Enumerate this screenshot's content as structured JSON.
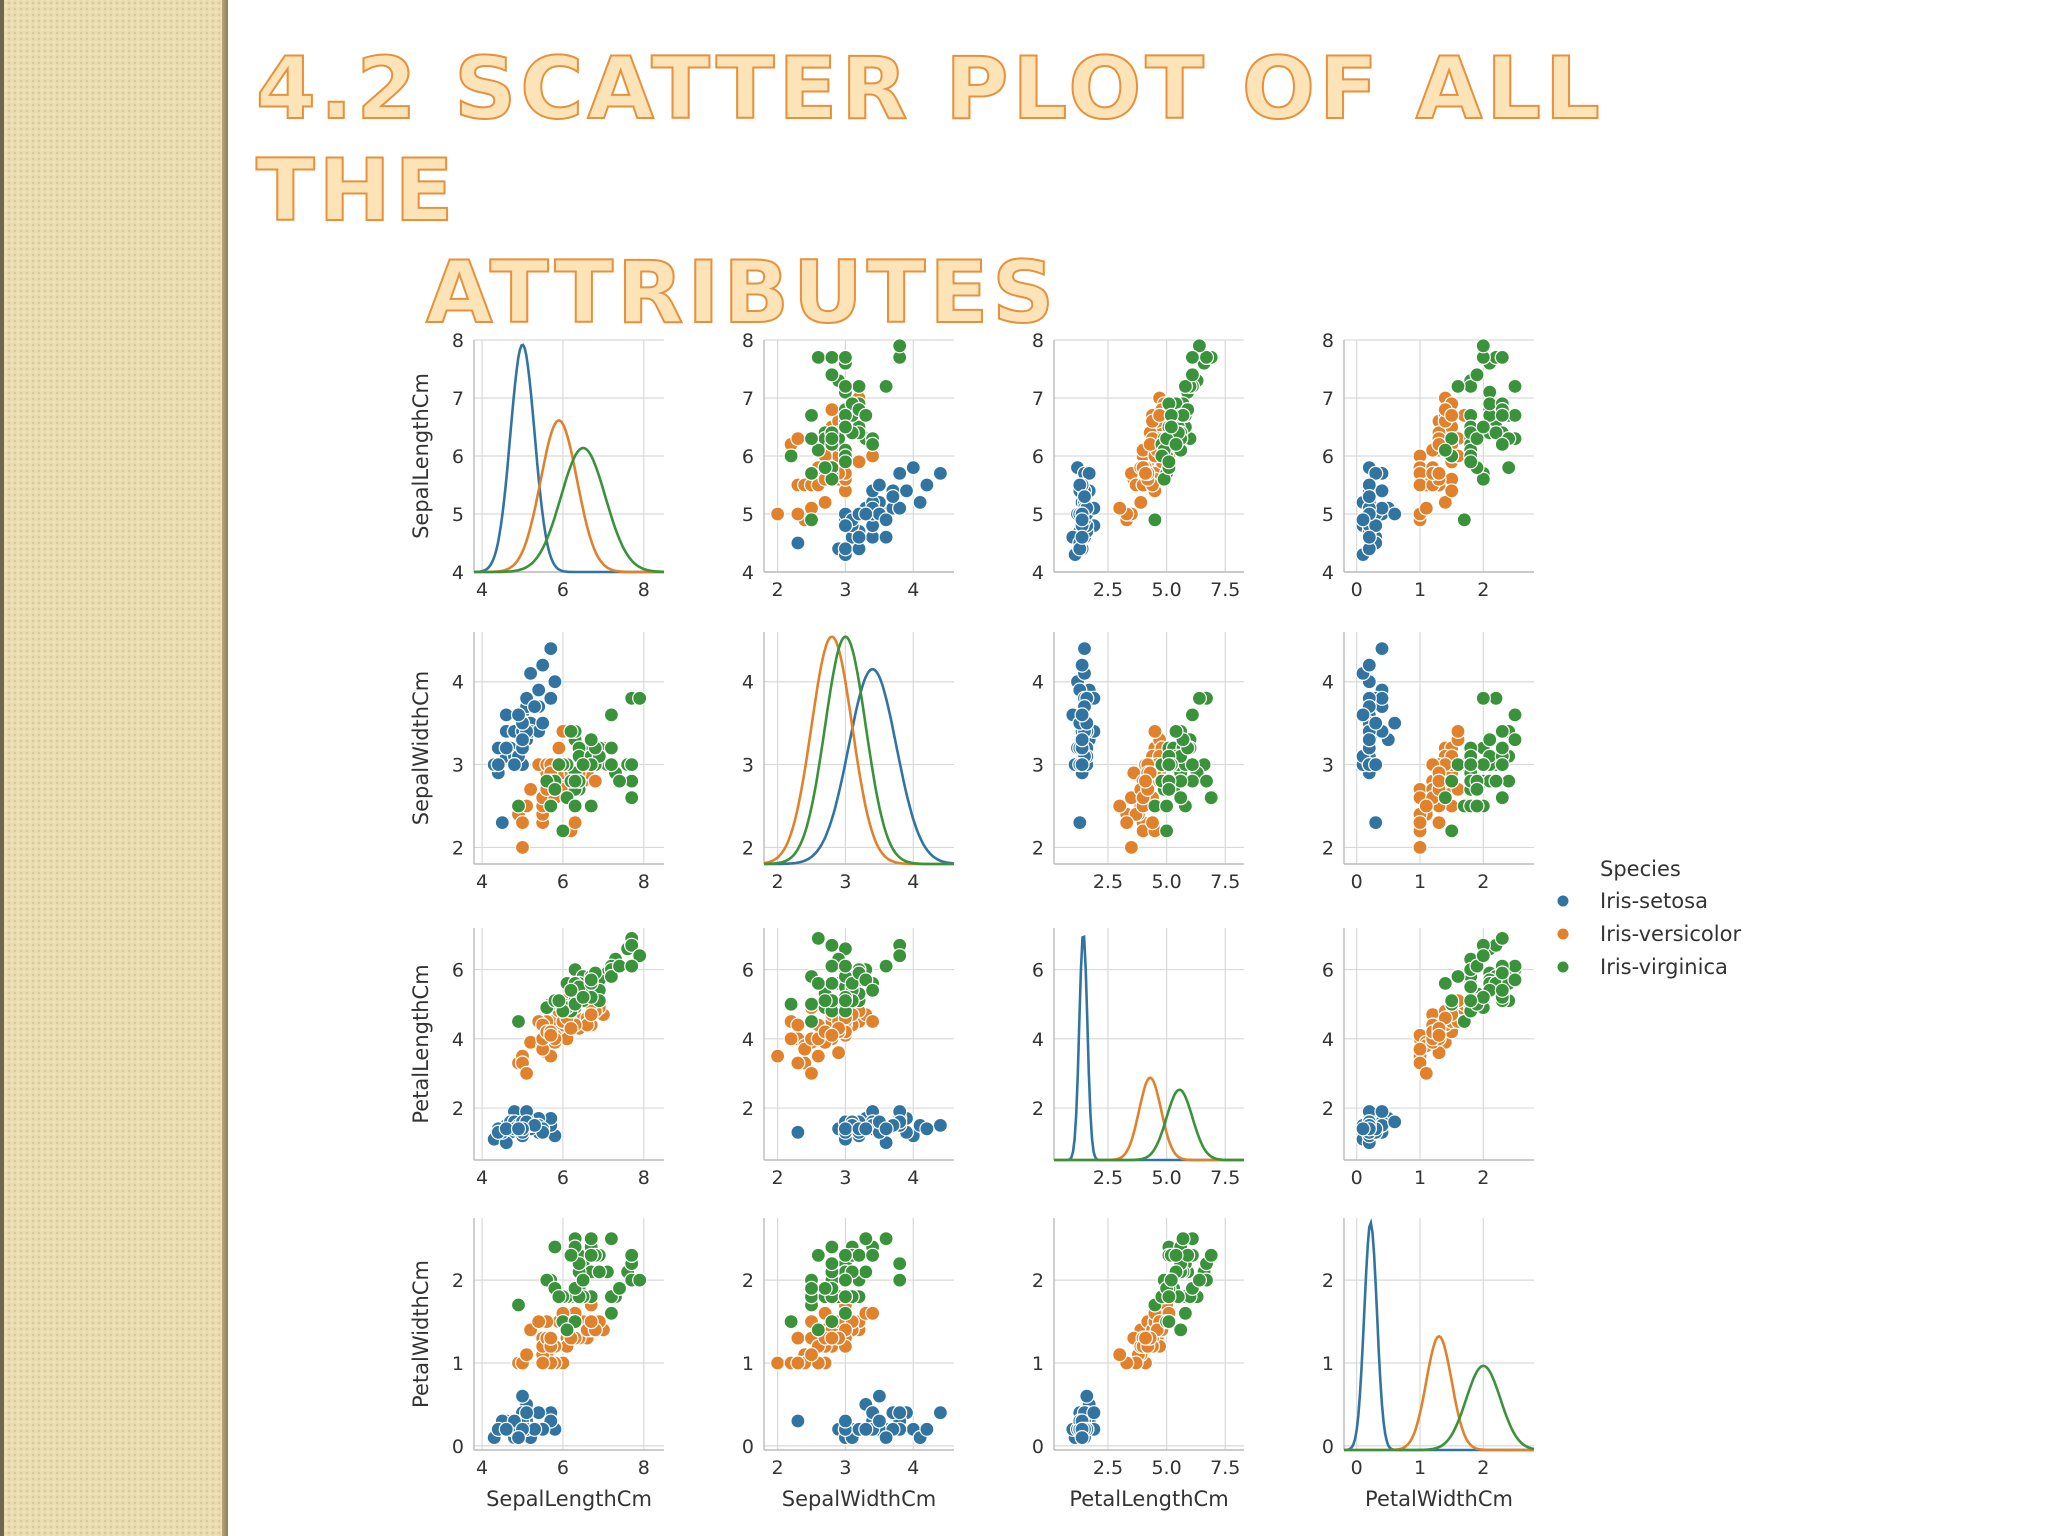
{
  "slide": {
    "title_line_1": "4.2 SCATTER PLOT OF ALL THE",
    "title_line_2": "ATTRIBUTES"
  },
  "colors": {
    "Iris-setosa": "#3274a1",
    "Iris-versicolor": "#e1812c",
    "Iris-virginica": "#3a923a",
    "grid": "#d9d9d9",
    "title_fill": "#fde3b8",
    "title_stroke": "#e8913a",
    "side_bar": "#e9dcb1"
  },
  "chart_data": {
    "type": "scatter",
    "variables": [
      "SepalLengthCm",
      "SepalWidthCm",
      "PetalLengthCm",
      "PetalWidthCm"
    ],
    "axis_labels": [
      "SepalLengthCm",
      "SepalWidthCm",
      "PetalLengthCm",
      "PetalWidthCm"
    ],
    "ranges": [
      [
        3.8,
        8.5
      ],
      [
        1.8,
        4.6
      ],
      [
        0.2,
        8.3
      ],
      [
        -0.2,
        2.8
      ]
    ],
    "ticks": [
      [
        4,
        6,
        8
      ],
      [
        2,
        3,
        4
      ],
      [
        2.5,
        5.0,
        7.5
      ],
      [
        0,
        1,
        2
      ]
    ],
    "tick_labels": [
      [
        "4",
        "6",
        "8"
      ],
      [
        "2",
        "3",
        "4"
      ],
      [
        "2.5",
        "5.0",
        "7.5"
      ],
      [
        "0",
        "1",
        "2"
      ]
    ],
    "row_ranges": [
      [
        4,
        8
      ],
      [
        1.8,
        4.6
      ],
      [
        0.5,
        7.2
      ],
      [
        -0.05,
        2.75
      ]
    ],
    "row_ticks": [
      [
        4,
        5,
        6,
        7,
        8
      ],
      [
        2,
        3,
        4
      ],
      [
        2,
        4,
        6
      ],
      [
        0,
        1,
        2
      ]
    ],
    "row_tick_labels": [
      [
        "4",
        "5",
        "6",
        "7",
        "8"
      ],
      [
        "2",
        "3",
        "4"
      ],
      [
        "2",
        "4",
        "6"
      ],
      [
        "0",
        "1",
        "2"
      ]
    ],
    "grid": true,
    "legend": {
      "title": "Species",
      "position": "right",
      "entries": [
        "Iris-setosa",
        "Iris-versicolor",
        "Iris-virginica"
      ]
    },
    "diagonal": "kde",
    "kde_peaks": {
      "SepalLengthCm": {
        "Iris-setosa": [
          5.0,
          0.3
        ],
        "Iris-versicolor": [
          5.9,
          0.45
        ],
        "Iris-virginica": [
          6.5,
          0.55
        ]
      },
      "SepalWidthCm": {
        "Iris-setosa": [
          3.4,
          0.35
        ],
        "Iris-versicolor": [
          2.8,
          0.3
        ],
        "Iris-virginica": [
          3.0,
          0.3
        ]
      },
      "PetalLengthCm": {
        "Iris-setosa": [
          1.45,
          0.17
        ],
        "Iris-versicolor": [
          4.3,
          0.47
        ],
        "Iris-virginica": [
          5.55,
          0.55
        ]
      },
      "PetalWidthCm": {
        "Iris-setosa": [
          0.22,
          0.1
        ],
        "Iris-versicolor": [
          1.3,
          0.2
        ],
        "Iris-virginica": [
          2.0,
          0.27
        ]
      }
    },
    "species_samples": {
      "Iris-setosa": [
        [
          5.1,
          3.5,
          1.4,
          0.2
        ],
        [
          4.9,
          3.0,
          1.4,
          0.2
        ],
        [
          4.7,
          3.2,
          1.3,
          0.2
        ],
        [
          4.6,
          3.1,
          1.5,
          0.2
        ],
        [
          5.0,
          3.6,
          1.4,
          0.2
        ],
        [
          5.4,
          3.9,
          1.7,
          0.4
        ],
        [
          4.6,
          3.4,
          1.4,
          0.3
        ],
        [
          5.0,
          3.4,
          1.5,
          0.2
        ],
        [
          4.4,
          2.9,
          1.4,
          0.2
        ],
        [
          4.9,
          3.1,
          1.5,
          0.1
        ],
        [
          5.4,
          3.7,
          1.5,
          0.2
        ],
        [
          4.8,
          3.4,
          1.6,
          0.2
        ],
        [
          4.8,
          3.0,
          1.4,
          0.1
        ],
        [
          4.3,
          3.0,
          1.1,
          0.1
        ],
        [
          5.8,
          4.0,
          1.2,
          0.2
        ],
        [
          5.7,
          4.4,
          1.5,
          0.4
        ],
        [
          5.4,
          3.9,
          1.3,
          0.4
        ],
        [
          5.1,
          3.5,
          1.4,
          0.3
        ],
        [
          5.7,
          3.8,
          1.7,
          0.3
        ],
        [
          5.1,
          3.8,
          1.5,
          0.3
        ],
        [
          5.4,
          3.4,
          1.7,
          0.2
        ],
        [
          5.1,
          3.7,
          1.5,
          0.4
        ],
        [
          4.6,
          3.6,
          1.0,
          0.2
        ],
        [
          5.1,
          3.3,
          1.7,
          0.5
        ],
        [
          4.8,
          3.4,
          1.9,
          0.2
        ],
        [
          5.0,
          3.0,
          1.6,
          0.2
        ],
        [
          5.0,
          3.4,
          1.6,
          0.4
        ],
        [
          5.2,
          3.5,
          1.5,
          0.2
        ],
        [
          5.2,
          3.4,
          1.4,
          0.2
        ],
        [
          4.7,
          3.2,
          1.6,
          0.2
        ],
        [
          4.8,
          3.1,
          1.6,
          0.2
        ],
        [
          5.4,
          3.4,
          1.5,
          0.4
        ],
        [
          5.2,
          4.1,
          1.5,
          0.1
        ],
        [
          5.5,
          4.2,
          1.4,
          0.2
        ],
        [
          4.9,
          3.1,
          1.5,
          0.1
        ],
        [
          5.0,
          3.2,
          1.2,
          0.2
        ],
        [
          5.5,
          3.5,
          1.3,
          0.2
        ],
        [
          4.4,
          3.0,
          1.3,
          0.2
        ],
        [
          5.1,
          3.4,
          1.5,
          0.2
        ],
        [
          5.0,
          3.5,
          1.3,
          0.3
        ],
        [
          4.5,
          2.3,
          1.3,
          0.3
        ],
        [
          4.4,
          3.2,
          1.3,
          0.2
        ],
        [
          5.0,
          3.5,
          1.6,
          0.6
        ],
        [
          5.1,
          3.8,
          1.9,
          0.4
        ],
        [
          4.8,
          3.0,
          1.4,
          0.3
        ],
        [
          5.1,
          3.8,
          1.6,
          0.2
        ],
        [
          4.6,
          3.2,
          1.4,
          0.2
        ],
        [
          5.3,
          3.7,
          1.5,
          0.2
        ],
        [
          5.0,
          3.3,
          1.4,
          0.2
        ],
        [
          4.9,
          3.6,
          1.4,
          0.1
        ]
      ],
      "Iris-versicolor": [
        [
          7.0,
          3.2,
          4.7,
          1.4
        ],
        [
          6.4,
          3.2,
          4.5,
          1.5
        ],
        [
          6.9,
          3.1,
          4.9,
          1.5
        ],
        [
          5.5,
          2.3,
          4.0,
          1.3
        ],
        [
          6.5,
          2.8,
          4.6,
          1.5
        ],
        [
          5.7,
          2.8,
          4.5,
          1.3
        ],
        [
          6.3,
          3.3,
          4.7,
          1.6
        ],
        [
          4.9,
          2.4,
          3.3,
          1.0
        ],
        [
          6.6,
          2.9,
          4.6,
          1.3
        ],
        [
          5.2,
          2.7,
          3.9,
          1.4
        ],
        [
          5.0,
          2.0,
          3.5,
          1.0
        ],
        [
          5.9,
          3.0,
          4.2,
          1.5
        ],
        [
          6.0,
          2.2,
          4.0,
          1.0
        ],
        [
          6.1,
          2.9,
          4.7,
          1.4
        ],
        [
          5.6,
          2.9,
          3.6,
          1.3
        ],
        [
          6.7,
          3.1,
          4.4,
          1.4
        ],
        [
          5.6,
          3.0,
          4.5,
          1.5
        ],
        [
          5.8,
          2.7,
          4.1,
          1.0
        ],
        [
          6.2,
          2.2,
          4.5,
          1.5
        ],
        [
          5.6,
          2.5,
          3.9,
          1.1
        ],
        [
          5.9,
          3.2,
          4.8,
          1.8
        ],
        [
          6.1,
          2.8,
          4.0,
          1.3
        ],
        [
          6.3,
          2.5,
          4.9,
          1.5
        ],
        [
          6.1,
          2.8,
          4.7,
          1.2
        ],
        [
          6.4,
          2.9,
          4.3,
          1.3
        ],
        [
          6.6,
          3.0,
          4.4,
          1.4
        ],
        [
          6.8,
          2.8,
          4.8,
          1.4
        ],
        [
          6.7,
          3.0,
          5.0,
          1.7
        ],
        [
          6.0,
          2.9,
          4.5,
          1.5
        ],
        [
          5.7,
          2.6,
          3.5,
          1.0
        ],
        [
          5.5,
          2.4,
          3.8,
          1.1
        ],
        [
          5.5,
          2.4,
          3.7,
          1.0
        ],
        [
          5.8,
          2.7,
          3.9,
          1.2
        ],
        [
          6.0,
          2.7,
          5.1,
          1.6
        ],
        [
          5.4,
          3.0,
          4.5,
          1.5
        ],
        [
          6.0,
          3.4,
          4.5,
          1.6
        ],
        [
          6.7,
          3.1,
          4.7,
          1.5
        ],
        [
          6.3,
          2.3,
          4.4,
          1.3
        ],
        [
          5.6,
          3.0,
          4.1,
          1.3
        ],
        [
          5.5,
          2.5,
          4.0,
          1.3
        ],
        [
          5.5,
          2.6,
          4.4,
          1.2
        ],
        [
          6.1,
          3.0,
          4.6,
          1.4
        ],
        [
          5.8,
          2.6,
          4.0,
          1.2
        ],
        [
          5.0,
          2.3,
          3.3,
          1.0
        ],
        [
          5.6,
          2.7,
          4.2,
          1.3
        ],
        [
          5.7,
          3.0,
          4.2,
          1.2
        ],
        [
          5.7,
          2.9,
          4.2,
          1.3
        ],
        [
          6.2,
          2.9,
          4.3,
          1.3
        ],
        [
          5.1,
          2.5,
          3.0,
          1.1
        ],
        [
          5.7,
          2.8,
          4.1,
          1.3
        ]
      ],
      "Iris-virginica": [
        [
          6.3,
          3.3,
          6.0,
          2.5
        ],
        [
          5.8,
          2.7,
          5.1,
          1.9
        ],
        [
          7.1,
          3.0,
          5.9,
          2.1
        ],
        [
          6.3,
          2.9,
          5.6,
          1.8
        ],
        [
          6.5,
          3.0,
          5.8,
          2.2
        ],
        [
          7.6,
          3.0,
          6.6,
          2.1
        ],
        [
          4.9,
          2.5,
          4.5,
          1.7
        ],
        [
          7.3,
          2.9,
          6.3,
          1.8
        ],
        [
          6.7,
          2.5,
          5.8,
          1.8
        ],
        [
          7.2,
          3.6,
          6.1,
          2.5
        ],
        [
          6.5,
          3.2,
          5.1,
          2.0
        ],
        [
          6.4,
          2.7,
          5.3,
          1.9
        ],
        [
          6.8,
          3.0,
          5.5,
          2.1
        ],
        [
          5.7,
          2.5,
          5.0,
          2.0
        ],
        [
          5.8,
          2.8,
          5.1,
          2.4
        ],
        [
          6.4,
          3.2,
          5.3,
          2.3
        ],
        [
          6.5,
          3.0,
          5.5,
          1.8
        ],
        [
          7.7,
          3.8,
          6.7,
          2.2
        ],
        [
          7.7,
          2.6,
          6.9,
          2.3
        ],
        [
          6.0,
          2.2,
          5.0,
          1.5
        ],
        [
          6.9,
          3.2,
          5.7,
          2.3
        ],
        [
          5.6,
          2.8,
          4.9,
          2.0
        ],
        [
          7.7,
          2.8,
          6.7,
          2.0
        ],
        [
          6.3,
          2.7,
          4.9,
          1.8
        ],
        [
          6.7,
          3.3,
          5.7,
          2.1
        ],
        [
          7.2,
          3.2,
          6.0,
          1.8
        ],
        [
          6.2,
          2.8,
          4.8,
          1.8
        ],
        [
          6.1,
          3.0,
          4.9,
          1.8
        ],
        [
          6.4,
          2.8,
          5.6,
          2.1
        ],
        [
          7.2,
          3.0,
          5.8,
          1.6
        ],
        [
          7.4,
          2.8,
          6.1,
          1.9
        ],
        [
          7.9,
          3.8,
          6.4,
          2.0
        ],
        [
          6.4,
          2.8,
          5.6,
          2.2
        ],
        [
          6.3,
          2.8,
          5.1,
          1.5
        ],
        [
          6.1,
          2.6,
          5.6,
          1.4
        ],
        [
          7.7,
          3.0,
          6.1,
          2.3
        ],
        [
          6.3,
          3.4,
          5.6,
          2.4
        ],
        [
          6.4,
          3.1,
          5.5,
          1.8
        ],
        [
          6.0,
          3.0,
          4.8,
          1.8
        ],
        [
          6.9,
          3.1,
          5.4,
          2.1
        ],
        [
          6.7,
          3.1,
          5.6,
          2.4
        ],
        [
          6.9,
          3.1,
          5.1,
          2.3
        ],
        [
          5.8,
          2.7,
          5.1,
          1.9
        ],
        [
          6.8,
          3.2,
          5.9,
          2.3
        ],
        [
          6.7,
          3.3,
          5.7,
          2.5
        ],
        [
          6.7,
          3.0,
          5.2,
          2.3
        ],
        [
          6.3,
          2.5,
          5.0,
          1.9
        ],
        [
          6.5,
          3.0,
          5.2,
          2.0
        ],
        [
          6.2,
          3.4,
          5.4,
          2.3
        ],
        [
          5.9,
          3.0,
          5.1,
          1.8
        ]
      ]
    }
  }
}
